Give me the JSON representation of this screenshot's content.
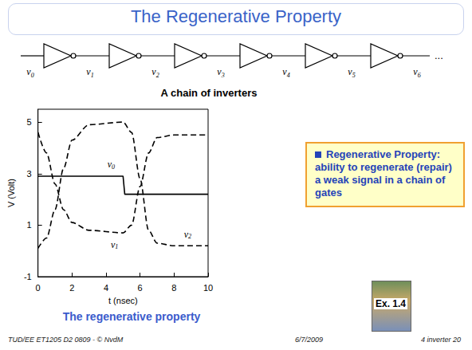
{
  "slide": {
    "title": "The Regenerative Property",
    "diagram": {
      "caption": "A chain of inverters",
      "nodes": [
        "v0",
        "v1",
        "v2",
        "v3",
        "v4",
        "v5",
        "v6"
      ],
      "continuation": "..."
    },
    "chart_caption": "The regenerative property",
    "box": {
      "term": "Regenerative Property:",
      "text": "ability to regenerate (repair) a weak signal in a chain of gates"
    },
    "reference": "Ex. 1.4",
    "footer": {
      "left": "TUD/EE ET1205 D2 0809 - © NvdM",
      "center": "6/7/2009",
      "right": "4 inverter 20"
    }
  },
  "chart_data": {
    "type": "line",
    "x_label": "t (nsec)",
    "y_label": "V (Volt)",
    "xlim": [
      0,
      10
    ],
    "xticks": [
      0,
      2,
      4,
      6,
      8,
      10
    ],
    "ylim": [
      -1,
      5.5
    ],
    "yticks": [
      -1,
      1,
      3,
      5
    ],
    "grid": false,
    "series": [
      {
        "name": "v0",
        "color": "#000000",
        "line_style": "solid",
        "x": [
          0,
          5,
          5.1,
          10
        ],
        "values": [
          2.9,
          2.9,
          2.2,
          2.2
        ]
      },
      {
        "name": "v1",
        "color": "#000000",
        "line_style": "dashed",
        "x": [
          0,
          0.5,
          1,
          1.5,
          2,
          3,
          5,
          5.5,
          6,
          6.5,
          7,
          8,
          10
        ],
        "values": [
          4.6,
          3.8,
          2.6,
          1.6,
          1.1,
          0.8,
          0.7,
          1.0,
          2.5,
          3.8,
          4.4,
          4.5,
          4.5
        ]
      },
      {
        "name": "v2",
        "color": "#000000",
        "line_style": "dashed",
        "x": [
          0,
          0.5,
          1,
          1.5,
          2,
          3,
          5,
          5.5,
          6,
          6.5,
          7,
          8,
          10
        ],
        "values": [
          0.1,
          0.5,
          1.6,
          3.2,
          4.3,
          4.9,
          5.0,
          4.6,
          2.8,
          0.8,
          0.3,
          0.2,
          0.2
        ]
      }
    ],
    "annotations": [
      {
        "text": "v0",
        "x": 4.3,
        "y": 3.35
      },
      {
        "text": "v1",
        "x": 4.5,
        "y": 0.25
      },
      {
        "text": "v2",
        "x": 8.8,
        "y": 0.65
      }
    ]
  }
}
